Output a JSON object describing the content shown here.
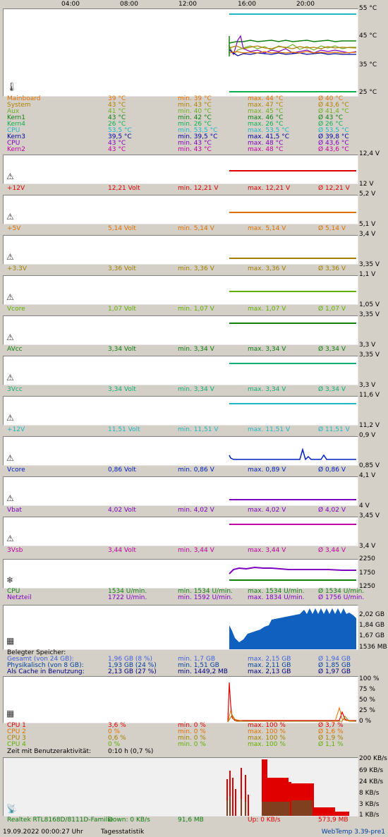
{
  "time_axis": [
    "04:00",
    "08:00",
    "12:00",
    "16:00",
    "20:00"
  ],
  "temp": {
    "axis": [
      "55 °C",
      "45 °C",
      "35 °C",
      "25 °C"
    ],
    "icon": "thermometer-icon",
    "rows": [
      {
        "label": "Mainboard",
        "cur": "39 °C",
        "min": "min. 39 °C",
        "max": "max. 44 °C",
        "avg": "Ø 40 °C",
        "color": "#e07000"
      },
      {
        "label": "System",
        "cur": "43 °C",
        "min": "min. 43 °C",
        "max": "max. 47 °C",
        "avg": "Ø 43,6 °C",
        "color": "#b08000"
      },
      {
        "label": "Aux",
        "cur": "41 °C",
        "min": "min. 40 °C",
        "max": "max. 45 °C",
        "avg": "Ø 41,4 °C",
        "color": "#70b020"
      },
      {
        "label": "Kern1",
        "cur": "43 °C",
        "min": "min. 42 °C",
        "max": "max. 46 °C",
        "avg": "Ø 43 °C",
        "color": "#108010"
      },
      {
        "label": "Kern4",
        "cur": "26 °C",
        "min": "min. 26 °C",
        "max": "max. 26 °C",
        "avg": "Ø 26 °C",
        "color": "#10b050"
      },
      {
        "label": "CPU",
        "cur": "53,5 °C",
        "min": "min. 53,5 °C",
        "max": "max. 53,5 °C",
        "avg": "Ø 53,5 °C",
        "color": "#20b8c0"
      },
      {
        "label": "Kern3",
        "cur": "39,5 °C",
        "min": "min. 39,5 °C",
        "max": "max. 41,5 °C",
        "avg": "Ø 39,8 °C",
        "color": "#0000a0"
      },
      {
        "label": "CPU",
        "cur": "43 °C",
        "min": "min. 43 °C",
        "max": "max. 48 °C",
        "avg": "Ø 43,6 °C",
        "color": "#8000c0"
      },
      {
        "label": "Kern2",
        "cur": "43 °C",
        "min": "min. 43 °C",
        "max": "max. 48 °C",
        "avg": "Ø 43,6 °C",
        "color": "#c000a0"
      }
    ]
  },
  "voltages": [
    {
      "label": "+12V",
      "cur": "12,21 Volt",
      "min": "min. 12,21 V",
      "max": "max. 12,21 V",
      "avg": "Ø 12,21 V",
      "axis_top": "12,4 V",
      "axis_bottom": "12 V",
      "color": "#e00000"
    },
    {
      "label": "+5V",
      "cur": "5,14 Volt",
      "min": "min. 5,14 V",
      "max": "max. 5,14 V",
      "avg": "Ø 5,14 V",
      "axis_top": "5,2 V",
      "axis_bottom": "5,1 V",
      "color": "#e07000"
    },
    {
      "label": "+3.3V",
      "cur": "3,36 Volt",
      "min": "min. 3,36 V",
      "max": "max. 3,36 V",
      "avg": "Ø 3,36 V",
      "axis_top": "3,4 V",
      "axis_bottom": "3,35 V",
      "color": "#a08000"
    },
    {
      "label": "Vcore",
      "cur": "1,07 Volt",
      "min": "min. 1,07 V",
      "max": "max. 1,07 V",
      "avg": "Ø 1,07 V",
      "axis_top": "1,1 V",
      "axis_bottom": "1,05 V",
      "color": "#60b000"
    },
    {
      "label": "AVcc",
      "cur": "3,34 Volt",
      "min": "min. 3,34 V",
      "max": "max. 3,34 V",
      "avg": "Ø 3,34 V",
      "axis_top": "3,35 V",
      "axis_bottom": "3,3 V",
      "color": "#108010"
    },
    {
      "label": "3Vcc",
      "cur": "3,34 Volt",
      "min": "min. 3,34 V",
      "max": "max. 3,34 V",
      "avg": "Ø 3,34 V",
      "axis_top": "3,35 V",
      "axis_bottom": "3,3 V",
      "color": "#10b070"
    },
    {
      "label": "+12V",
      "cur": "11,51 Volt",
      "min": "min. 11,51 V",
      "max": "max. 11,51 V",
      "avg": "Ø 11,51 V",
      "axis_top": "11,6 V",
      "axis_bottom": "11,2 V",
      "color": "#20b8c0"
    },
    {
      "label": "Vcore",
      "cur": "0,86 Volt",
      "min": "min. 0,86 V",
      "max": "max. 0,89 V",
      "avg": "Ø 0,86 V",
      "axis_top": "0,9 V",
      "axis_bottom": "0,85 V",
      "color": "#0020c0"
    },
    {
      "label": "Vbat",
      "cur": "4,02 Volt",
      "min": "min. 4,02 V",
      "max": "max. 4,02 V",
      "avg": "Ø 4,02 V",
      "axis_top": "4,1 V",
      "axis_bottom": "4 V",
      "color": "#8000c0"
    },
    {
      "label": "3Vsb",
      "cur": "3,44 Volt",
      "min": "min. 3,44 V",
      "max": "max. 3,44 V",
      "avg": "Ø 3,44 V",
      "axis_top": "3,45 V",
      "axis_bottom": "3,4 V",
      "color": "#c000a0"
    }
  ],
  "fans": {
    "axis": [
      "2250",
      "1750",
      "1250"
    ],
    "icon": "fan-icon",
    "rows": [
      {
        "label": "CPU",
        "cur": "1534 U/min.",
        "min": "min. 1534 U/min.",
        "max": "max. 1534 U/min.",
        "avg": "Ø 1534 U/min.",
        "color": "#108010"
      },
      {
        "label": "Netzteil",
        "cur": "1722 U/min.",
        "min": "min. 1592 U/min.",
        "max": "max. 1834 U/min.",
        "avg": "Ø 1756 U/min.",
        "color": "#8000c0"
      }
    ]
  },
  "memory": {
    "axis": [
      "2,02 GB",
      "1,84 GB",
      "1,67 GB",
      "1536 MB"
    ],
    "icon": "memory-chip-icon",
    "header": "Belegter Speicher:",
    "rows": [
      {
        "label": "Gesamt (von 24 GB):",
        "cur": "1,96 GB (8 %)",
        "min": "min. 1,7 GB",
        "max": "max. 2,15 GB",
        "avg": "Ø 1,94 GB",
        "color": "#4060e0"
      },
      {
        "label": "Physikalisch (von 8 GB):",
        "cur": "1,93 GB (24 %)",
        "min": "min. 1,51 GB",
        "max": "max. 2,11 GB",
        "avg": "Ø 1,85 GB",
        "color": "#0040a0"
      },
      {
        "label": "Als Cache in Benutzung:",
        "cur": "2,13 GB (27 %)",
        "min": "min. 1449,2 MB",
        "max": "max. 2,13 GB",
        "avg": "Ø 1,97 GB",
        "color": "#000080"
      }
    ]
  },
  "cpu": {
    "axis": [
      "100 %",
      "75 %",
      "50 %",
      "25 %",
      "0 %"
    ],
    "icon": "cpu-icon",
    "rows": [
      {
        "label": "CPU 1",
        "cur": "3,6 %",
        "min": "min. 0 %",
        "max": "max. 100 %",
        "avg": "Ø 3,7 %",
        "color": "#e00000"
      },
      {
        "label": "CPU 2",
        "cur": "0 %",
        "min": "min. 0 %",
        "max": "max. 100 %",
        "avg": "Ø 1,6 %",
        "color": "#e07000"
      },
      {
        "label": "CPU 3",
        "cur": "0,6 %",
        "min": "min. 0 %",
        "max": "max. 100 %",
        "avg": "Ø 1,9 %",
        "color": "#a08000"
      },
      {
        "label": "CPU 4",
        "cur": "0 %",
        "min": "min. 0 %",
        "max": "max. 100 %",
        "avg": "Ø 1,1 %",
        "color": "#60b000"
      }
    ],
    "activity_label": "Zeit mit Benutzeraktivität:",
    "activity_value": "0:10 h (0,7 %)"
  },
  "network": {
    "axis": [
      "200 KB/s",
      "69 KB/s",
      "24 KB/s",
      "8 KB/s",
      "3 KB/s",
      "1 KB/s"
    ],
    "icon": "network-icon",
    "adapter": "Realtek RTL8168D/8111D-Familie",
    "down": "Down: 0 KB/s",
    "down_total": "91,6 MB",
    "up": "Up: 0 KB/s",
    "up_total": "573,9 MB"
  },
  "footer": {
    "datetime": "19.09.2022 00:00:27 Uhr",
    "link": "Tagesstatistik",
    "version": "WebTemp 3.39-pre1"
  }
}
